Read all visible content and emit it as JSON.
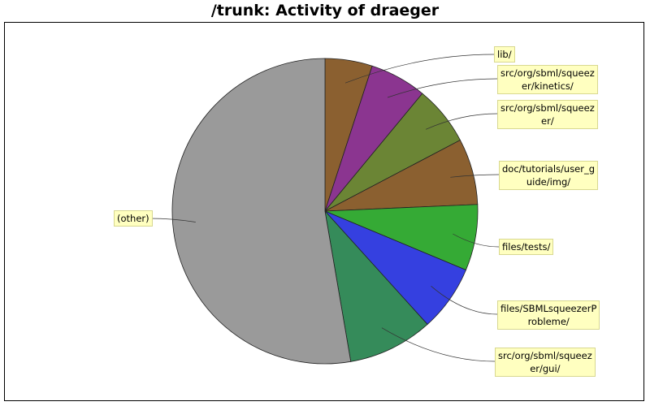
{
  "chart_data": {
    "type": "pie",
    "title": "/trunk: Activity of draeger",
    "start_angle_deg": 0,
    "direction": "clockwise",
    "slices": [
      {
        "label": "lib/",
        "value": 5.0,
        "color": "#8b6030"
      },
      {
        "label": "src/org/sbml/squeezer/kinetics/",
        "value": 6.0,
        "color": "#8b3590"
      },
      {
        "label": "src/org/sbml/squeezer/",
        "value": 6.3,
        "color": "#6b8535"
      },
      {
        "label": "doc/tutorials/user_guide/img/",
        "value": 7.0,
        "color": "#8b6030"
      },
      {
        "label": "files/tests/",
        "value": 7.0,
        "color": "#35aa35"
      },
      {
        "label": "files/SBMLsqueezerProbleme/",
        "value": 7.0,
        "color": "#3540e0"
      },
      {
        "label": "src/org/sbml/squeezer/gui/",
        "value": 9.0,
        "color": "#358b5a"
      },
      {
        "label": "(other)",
        "value": 52.7,
        "color": "#9a9a9a"
      }
    ],
    "labels": [
      {
        "lines": [
          "lib/"
        ]
      },
      {
        "lines": [
          "src/org/sbml/squeez",
          "er/kinetics/"
        ]
      },
      {
        "lines": [
          "src/org/sbml/squeez",
          "er/"
        ]
      },
      {
        "lines": [
          "doc/tutorials/user_g",
          "uide/img/"
        ]
      },
      {
        "lines": [
          "files/tests/"
        ]
      },
      {
        "lines": [
          "files/SBMLsqueezerP",
          "robleme/"
        ]
      },
      {
        "lines": [
          "src/org/sbml/squeez",
          "er/gui/"
        ]
      },
      {
        "lines": [
          "(other)"
        ]
      }
    ],
    "legend": "none",
    "grid": false
  }
}
